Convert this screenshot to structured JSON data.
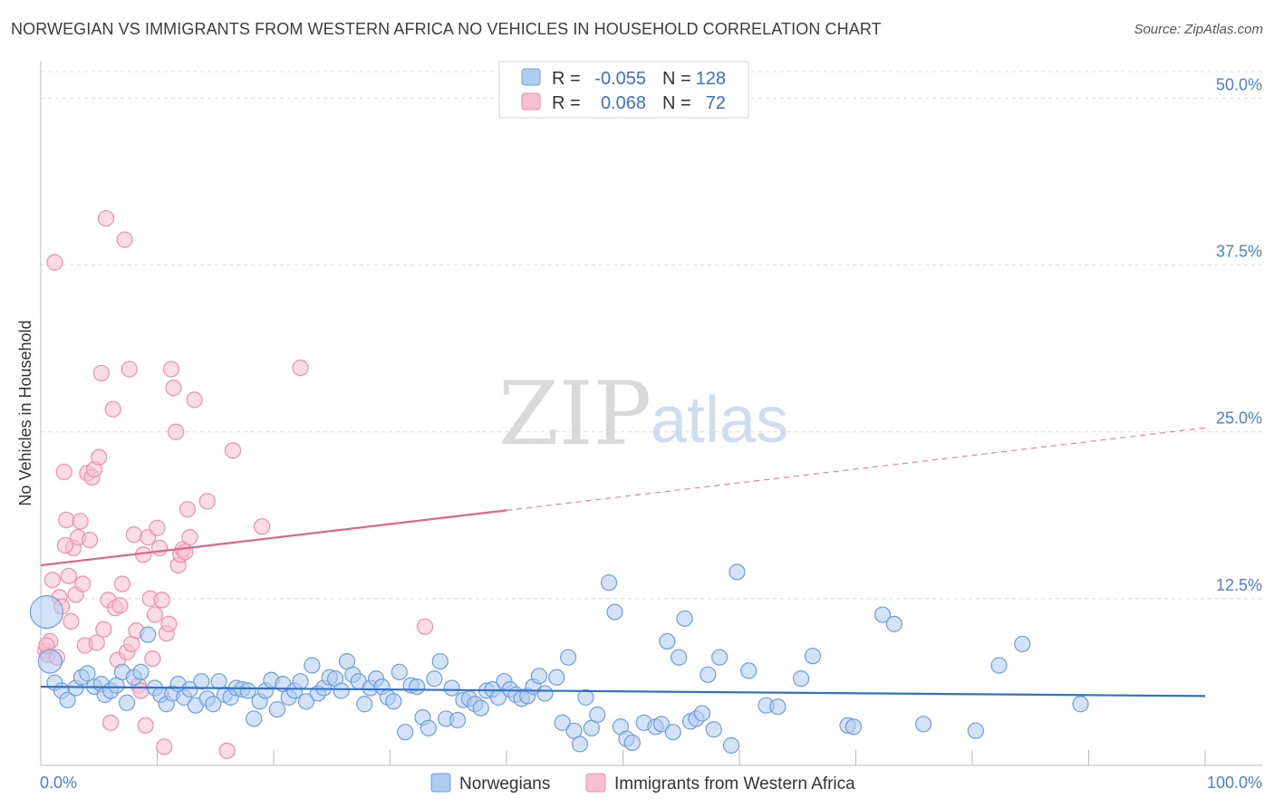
{
  "title": "NORWEGIAN VS IMMIGRANTS FROM WESTERN AFRICA NO VEHICLES IN HOUSEHOLD CORRELATION CHART",
  "source": "Source: ZipAtlas.com",
  "watermark": {
    "zip": "ZIP",
    "atlas": "atlas"
  },
  "colors": {
    "blue_fill": "#aecbf0",
    "blue_stroke": "#6e9edf",
    "blue_line": "#2f72cc",
    "pink_fill": "#f7bfd0",
    "pink_stroke": "#ee8fab",
    "pink_line": "#e0658e",
    "grid": "#dcdcdc",
    "axis": "#bbbbbb",
    "tick_text": "#4a7fd4"
  },
  "legend": {
    "rows": [
      {
        "r_label": "R =",
        "r_value": "-0.055",
        "n_label": "N =",
        "n_value": "128"
      },
      {
        "r_label": "R =",
        "r_value": "0.068",
        "n_label": "N =",
        "n_value": "72"
      }
    ]
  },
  "chart_data": {
    "type": "scatter",
    "title": "NORWEGIAN VS IMMIGRANTS FROM WESTERN AFRICA NO VEHICLES IN HOUSEHOLD CORRELATION CHART",
    "xlabel": "",
    "ylabel": "No Vehicles in Household",
    "xlim": [
      0,
      100
    ],
    "ylim": [
      0,
      52
    ],
    "x_tick_labels": [
      "0.0%",
      "100.0%"
    ],
    "y_ticks": [
      12.5,
      25.0,
      37.5,
      50.0
    ],
    "y_tick_labels": [
      "12.5%",
      "25.0%",
      "37.5%",
      "50.0%"
    ],
    "grid": true,
    "legend_position": "bottom",
    "series": [
      {
        "name": "Norwegians",
        "r": -0.055,
        "n": 128,
        "trend": {
          "x": [
            0,
            100
          ],
          "y": [
            5.9,
            5.2
          ],
          "dashed_from": null
        },
        "points": [
          [
            0.5,
            11.5
          ],
          [
            0.8,
            7.8
          ],
          [
            1.2,
            6.2
          ],
          [
            1.8,
            5.6
          ],
          [
            2.3,
            4.9
          ],
          [
            3.0,
            5.8
          ],
          [
            3.5,
            6.6
          ],
          [
            4.0,
            6.9
          ],
          [
            4.6,
            5.9
          ],
          [
            5.2,
            6.1
          ],
          [
            5.5,
            5.3
          ],
          [
            6.0,
            5.6
          ],
          [
            6.5,
            6.0
          ],
          [
            7.0,
            7.0
          ],
          [
            7.4,
            4.7
          ],
          [
            8.0,
            6.6
          ],
          [
            8.6,
            7.0
          ],
          [
            9.2,
            9.8
          ],
          [
            9.8,
            5.8
          ],
          [
            10.3,
            5.3
          ],
          [
            10.8,
            4.6
          ],
          [
            11.3,
            5.4
          ],
          [
            11.8,
            6.1
          ],
          [
            12.3,
            5.1
          ],
          [
            12.8,
            5.7
          ],
          [
            13.3,
            4.5
          ],
          [
            13.8,
            6.3
          ],
          [
            14.3,
            5.0
          ],
          [
            14.8,
            4.6
          ],
          [
            15.3,
            6.3
          ],
          [
            15.8,
            5.3
          ],
          [
            16.3,
            5.1
          ],
          [
            16.8,
            5.8
          ],
          [
            17.3,
            5.7
          ],
          [
            17.8,
            5.6
          ],
          [
            18.3,
            3.5
          ],
          [
            18.8,
            4.8
          ],
          [
            19.3,
            5.6
          ],
          [
            19.8,
            6.4
          ],
          [
            20.3,
            4.2
          ],
          [
            20.8,
            6.1
          ],
          [
            21.3,
            5.1
          ],
          [
            21.8,
            5.6
          ],
          [
            22.3,
            6.3
          ],
          [
            22.8,
            4.8
          ],
          [
            23.3,
            7.5
          ],
          [
            23.8,
            5.4
          ],
          [
            24.3,
            5.8
          ],
          [
            24.8,
            6.6
          ],
          [
            25.3,
            6.5
          ],
          [
            25.8,
            5.6
          ],
          [
            26.3,
            7.8
          ],
          [
            26.8,
            6.8
          ],
          [
            27.3,
            6.3
          ],
          [
            27.8,
            4.6
          ],
          [
            28.3,
            5.8
          ],
          [
            28.8,
            6.5
          ],
          [
            29.3,
            5.9
          ],
          [
            29.8,
            5.1
          ],
          [
            30.3,
            4.8
          ],
          [
            30.8,
            7.0
          ],
          [
            31.3,
            2.5
          ],
          [
            31.8,
            6.0
          ],
          [
            32.3,
            5.9
          ],
          [
            32.8,
            3.6
          ],
          [
            33.3,
            2.8
          ],
          [
            33.8,
            6.5
          ],
          [
            34.3,
            7.8
          ],
          [
            34.8,
            3.5
          ],
          [
            35.3,
            5.8
          ],
          [
            35.8,
            3.4
          ],
          [
            36.3,
            4.9
          ],
          [
            36.8,
            5.0
          ],
          [
            37.3,
            4.6
          ],
          [
            37.8,
            4.3
          ],
          [
            38.3,
            5.6
          ],
          [
            38.8,
            5.7
          ],
          [
            39.3,
            5.1
          ],
          [
            39.8,
            6.3
          ],
          [
            40.3,
            5.7
          ],
          [
            40.8,
            5.3
          ],
          [
            41.3,
            5.0
          ],
          [
            41.8,
            5.2
          ],
          [
            42.3,
            5.9
          ],
          [
            42.8,
            6.7
          ],
          [
            43.3,
            5.4
          ],
          [
            44.3,
            6.6
          ],
          [
            44.8,
            3.2
          ],
          [
            45.3,
            8.1
          ],
          [
            45.8,
            2.6
          ],
          [
            46.3,
            1.6
          ],
          [
            46.8,
            5.1
          ],
          [
            47.3,
            2.8
          ],
          [
            47.8,
            3.8
          ],
          [
            48.8,
            13.7
          ],
          [
            49.3,
            11.5
          ],
          [
            49.8,
            2.9
          ],
          [
            50.3,
            2.0
          ],
          [
            50.8,
            1.7
          ],
          [
            51.8,
            3.2
          ],
          [
            52.8,
            2.9
          ],
          [
            53.3,
            3.1
          ],
          [
            53.8,
            9.3
          ],
          [
            54.3,
            2.5
          ],
          [
            54.8,
            8.1
          ],
          [
            55.3,
            11.0
          ],
          [
            55.8,
            3.3
          ],
          [
            56.3,
            3.5
          ],
          [
            56.8,
            3.9
          ],
          [
            57.3,
            6.8
          ],
          [
            57.8,
            2.7
          ],
          [
            58.3,
            8.1
          ],
          [
            59.3,
            1.5
          ],
          [
            59.8,
            14.5
          ],
          [
            60.8,
            7.1
          ],
          [
            62.3,
            4.5
          ],
          [
            63.3,
            4.4
          ],
          [
            65.3,
            6.5
          ],
          [
            66.3,
            8.2
          ],
          [
            69.3,
            3.0
          ],
          [
            69.8,
            2.9
          ],
          [
            72.3,
            11.3
          ],
          [
            73.3,
            10.6
          ],
          [
            75.8,
            3.1
          ],
          [
            80.3,
            2.6
          ],
          [
            82.3,
            7.5
          ],
          [
            84.3,
            9.1
          ],
          [
            89.3,
            4.6
          ]
        ]
      },
      {
        "name": "Immigrants from Western Africa",
        "r": 0.068,
        "n": 72,
        "trend": {
          "x": [
            0,
            100
          ],
          "y": [
            15.0,
            25.3
          ],
          "dashed_from": 40
        },
        "points": [
          [
            0.4,
            8.6
          ],
          [
            0.6,
            8.3
          ],
          [
            0.8,
            9.3
          ],
          [
            1.0,
            13.9
          ],
          [
            1.2,
            37.7
          ],
          [
            1.4,
            8.1
          ],
          [
            1.6,
            12.6
          ],
          [
            1.8,
            11.9
          ],
          [
            2.0,
            22.0
          ],
          [
            2.2,
            18.4
          ],
          [
            2.4,
            14.2
          ],
          [
            2.6,
            10.8
          ],
          [
            2.8,
            16.3
          ],
          [
            3.0,
            12.8
          ],
          [
            3.2,
            17.1
          ],
          [
            3.4,
            18.3
          ],
          [
            3.6,
            13.6
          ],
          [
            3.8,
            9.0
          ],
          [
            4.0,
            21.9
          ],
          [
            4.2,
            16.9
          ],
          [
            4.4,
            21.6
          ],
          [
            4.6,
            22.2
          ],
          [
            4.8,
            9.2
          ],
          [
            5.0,
            23.1
          ],
          [
            5.2,
            29.4
          ],
          [
            5.4,
            10.2
          ],
          [
            5.6,
            41.0
          ],
          [
            5.8,
            12.4
          ],
          [
            6.0,
            3.2
          ],
          [
            6.2,
            26.7
          ],
          [
            6.4,
            11.8
          ],
          [
            6.6,
            7.9
          ],
          [
            6.8,
            12.0
          ],
          [
            7.0,
            13.6
          ],
          [
            7.2,
            39.4
          ],
          [
            7.4,
            8.5
          ],
          [
            7.6,
            29.7
          ],
          [
            7.8,
            9.1
          ],
          [
            8.0,
            17.3
          ],
          [
            8.2,
            10.1
          ],
          [
            8.4,
            6.0
          ],
          [
            8.6,
            5.6
          ],
          [
            8.8,
            15.8
          ],
          [
            9.0,
            3.0
          ],
          [
            9.2,
            17.1
          ],
          [
            9.4,
            12.5
          ],
          [
            9.6,
            8.0
          ],
          [
            9.8,
            11.3
          ],
          [
            10.0,
            17.8
          ],
          [
            10.2,
            16.3
          ],
          [
            10.4,
            12.4
          ],
          [
            10.6,
            1.4
          ],
          [
            10.8,
            9.9
          ],
          [
            11.0,
            10.6
          ],
          [
            11.2,
            29.7
          ],
          [
            11.4,
            28.3
          ],
          [
            11.6,
            25.0
          ],
          [
            11.8,
            15.0
          ],
          [
            12.0,
            15.8
          ],
          [
            12.2,
            16.2
          ],
          [
            12.4,
            16.0
          ],
          [
            12.6,
            19.2
          ],
          [
            12.8,
            17.1
          ],
          [
            13.2,
            27.4
          ],
          [
            14.3,
            19.8
          ],
          [
            16.0,
            1.1
          ],
          [
            16.5,
            23.6
          ],
          [
            19.0,
            17.9
          ],
          [
            22.3,
            29.8
          ],
          [
            33.0,
            10.4
          ],
          [
            0.5,
            9.0
          ],
          [
            2.1,
            16.5
          ]
        ]
      }
    ]
  },
  "bottom_legend": [
    {
      "label": "Norwegians"
    },
    {
      "label": "Immigrants from Western Africa"
    }
  ]
}
